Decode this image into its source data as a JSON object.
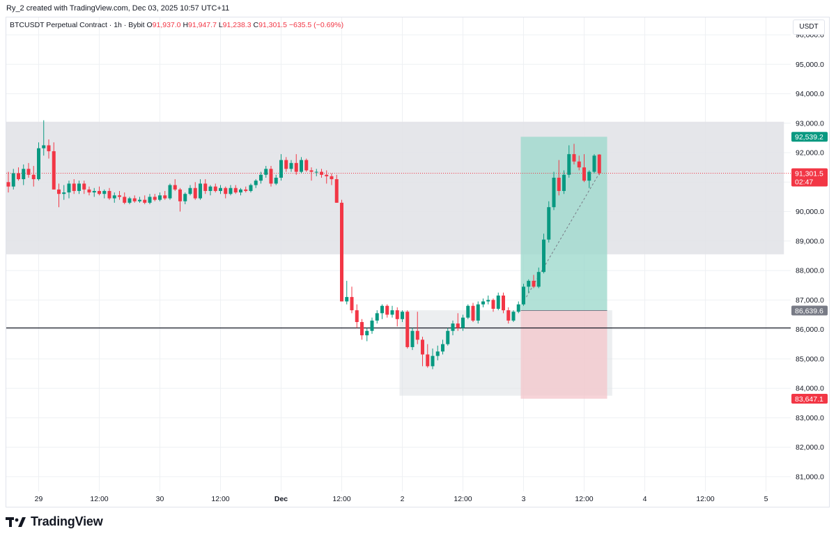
{
  "header": {
    "credit": "Ry_2 created with TradingView.com, Dec 03, 2025 10:57 UTC+11"
  },
  "legend": {
    "symbol": "BTCUSDT Perpetual Contract · 1h · Bybit",
    "o_label": "O",
    "o_value": "91,937.0",
    "h_label": "H",
    "h_value": "91,947.7",
    "l_label": "L",
    "l_value": "91,238.3",
    "c_label": "C",
    "c_value": "91,301.5",
    "change": "−635.5 (−0.69%)"
  },
  "currency": "USDT",
  "footer": {
    "brand": "TradingView"
  },
  "colors": {
    "up": "#089981",
    "down": "#f23645",
    "zone": "#e0e2e6",
    "profit": "#9fd9cd",
    "loss": "#f4c5cb",
    "grid": "#eef0f3"
  },
  "chart_data": {
    "type": "candlestick",
    "timeframe": "1h",
    "ylim": [
      80500,
      96000
    ],
    "y_ticks": [
      81000,
      82000,
      83000,
      84000,
      85000,
      86000,
      87000,
      88000,
      89000,
      90000,
      91000,
      92000,
      93000,
      94000,
      95000,
      96000
    ],
    "y_tick_labels": [
      "81,000.0",
      "82,000.0",
      "83,000.0",
      "84,000.0",
      "85,000.0",
      "86,000.0",
      "87,000.0",
      "88,000.0",
      "89,000.0",
      "90,000.0",
      "91,000.0",
      "92,000.0",
      "93,000.0",
      "94,000.0",
      "95,000.0",
      "96,000.0"
    ],
    "x_ticks": [
      {
        "label": "29",
        "bar": 6,
        "bold": false
      },
      {
        "label": "12:00",
        "bar": 18,
        "bold": false
      },
      {
        "label": "30",
        "bar": 30,
        "bold": false
      },
      {
        "label": "12:00",
        "bar": 42,
        "bold": false
      },
      {
        "label": "Dec",
        "bar": 54,
        "bold": true
      },
      {
        "label": "12:00",
        "bar": 66,
        "bold": false
      },
      {
        "label": "2",
        "bar": 78,
        "bold": false
      },
      {
        "label": "12:00",
        "bar": 90,
        "bold": false
      },
      {
        "label": "3",
        "bar": 102,
        "bold": false
      },
      {
        "label": "12:00",
        "bar": 114,
        "bold": false
      },
      {
        "label": "4",
        "bar": 126,
        "bold": false
      },
      {
        "label": "12:00",
        "bar": 138,
        "bold": false
      },
      {
        "label": "5",
        "bar": 150,
        "bold": false
      }
    ],
    "candles": [
      [
        91000,
        91350,
        90650,
        90850
      ],
      [
        90850,
        91450,
        90750,
        91300
      ],
      [
        91300,
        91500,
        91050,
        91100
      ],
      [
        91100,
        91600,
        90900,
        91450
      ],
      [
        91450,
        91650,
        91150,
        91250
      ],
      [
        91250,
        91550,
        90850,
        91100
      ],
      [
        91100,
        92350,
        91050,
        92150
      ],
      [
        92150,
        93100,
        91900,
        92250
      ],
      [
        92250,
        92450,
        91800,
        92050
      ],
      [
        92050,
        92350,
        90750,
        90750
      ],
      [
        90750,
        90950,
        90150,
        90600
      ],
      [
        90600,
        90900,
        90400,
        90650
      ],
      [
        90650,
        91050,
        90450,
        90950
      ],
      [
        90950,
        91100,
        90600,
        90700
      ],
      [
        90700,
        91050,
        90600,
        90950
      ],
      [
        90950,
        91050,
        90600,
        90750
      ],
      [
        90750,
        90850,
        90550,
        90650
      ],
      [
        90650,
        90800,
        90500,
        90700
      ],
      [
        90700,
        90850,
        90550,
        90600
      ],
      [
        90600,
        90750,
        90450,
        90700
      ],
      [
        90700,
        90800,
        90400,
        90450
      ],
      [
        90450,
        90650,
        90300,
        90550
      ],
      [
        90550,
        90700,
        90400,
        90500
      ],
      [
        90500,
        90650,
        90250,
        90300
      ],
      [
        90300,
        90500,
        90250,
        90450
      ],
      [
        90450,
        90550,
        90300,
        90350
      ],
      [
        90350,
        90500,
        90300,
        90400
      ],
      [
        90400,
        90550,
        90250,
        90300
      ],
      [
        90300,
        90600,
        90250,
        90500
      ],
      [
        90500,
        90600,
        90350,
        90400
      ],
      [
        90400,
        90650,
        90350,
        90550
      ],
      [
        90550,
        90700,
        90400,
        90450
      ],
      [
        90450,
        90950,
        90400,
        90900
      ],
      [
        90900,
        91100,
        90700,
        90750
      ],
      [
        90750,
        90800,
        90000,
        90350
      ],
      [
        90350,
        90650,
        90250,
        90600
      ],
      [
        90600,
        90900,
        90550,
        90800
      ],
      [
        90800,
        91000,
        90400,
        90450
      ],
      [
        90450,
        91100,
        90400,
        90950
      ],
      [
        90950,
        91100,
        90600,
        90700
      ],
      [
        90700,
        90900,
        90550,
        90850
      ],
      [
        90850,
        90950,
        90650,
        90700
      ],
      [
        90700,
        90900,
        90600,
        90800
      ],
      [
        90800,
        90850,
        90450,
        90600
      ],
      [
        90600,
        90900,
        90550,
        90800
      ],
      [
        90800,
        90900,
        90600,
        90650
      ],
      [
        90650,
        90800,
        90550,
        90750
      ],
      [
        90750,
        90850,
        90650,
        90700
      ],
      [
        90700,
        90950,
        90650,
        90900
      ],
      [
        90900,
        91100,
        90800,
        91050
      ],
      [
        91050,
        91350,
        90950,
        91250
      ],
      [
        91250,
        91550,
        91150,
        91450
      ],
      [
        91450,
        91550,
        90850,
        90950
      ],
      [
        90950,
        91250,
        90900,
        91150
      ],
      [
        91150,
        91950,
        91050,
        91750
      ],
      [
        91750,
        91850,
        91350,
        91450
      ],
      [
        91450,
        91750,
        91350,
        91650
      ],
      [
        91650,
        91950,
        91250,
        91350
      ],
      [
        91350,
        91850,
        91300,
        91750
      ],
      [
        91750,
        91800,
        91350,
        91400
      ],
      [
        91400,
        91500,
        91050,
        91350
      ],
      [
        91350,
        91450,
        91200,
        91350
      ],
      [
        91350,
        91450,
        91150,
        91250
      ],
      [
        91250,
        91400,
        90950,
        91200
      ],
      [
        91200,
        91300,
        90900,
        91100
      ],
      [
        91100,
        91250,
        90300,
        90300
      ],
      [
        90300,
        90400,
        86950,
        86950
      ],
      [
        86950,
        87650,
        86850,
        87100
      ],
      [
        87100,
        87450,
        86550,
        86650
      ],
      [
        86650,
        86850,
        86050,
        86250
      ],
      [
        86250,
        86350,
        85650,
        85800
      ],
      [
        85800,
        86050,
        85600,
        85950
      ],
      [
        85950,
        86400,
        85850,
        86300
      ],
      [
        86300,
        86650,
        86200,
        86550
      ],
      [
        86550,
        86850,
        86350,
        86800
      ],
      [
        86800,
        86850,
        86400,
        86500
      ],
      [
        86500,
        86800,
        86400,
        86650
      ],
      [
        86650,
        86750,
        86100,
        86350
      ],
      [
        86350,
        86650,
        86250,
        86600
      ],
      [
        86600,
        86650,
        85350,
        85400
      ],
      [
        85400,
        86050,
        85300,
        85950
      ],
      [
        85950,
        86600,
        85500,
        85650
      ],
      [
        85650,
        85750,
        84750,
        85150
      ],
      [
        85150,
        85500,
        84700,
        84750
      ],
      [
        84750,
        85350,
        84650,
        85100
      ],
      [
        85100,
        85450,
        84950,
        85250
      ],
      [
        85250,
        85650,
        85150,
        85500
      ],
      [
        85500,
        86050,
        85450,
        85950
      ],
      [
        85950,
        86300,
        85800,
        86200
      ],
      [
        86200,
        86550,
        85950,
        86050
      ],
      [
        86050,
        86500,
        85950,
        86400
      ],
      [
        86400,
        86850,
        86350,
        86800
      ],
      [
        86800,
        86900,
        86250,
        86300
      ],
      [
        86300,
        86950,
        86200,
        86850
      ],
      [
        86850,
        87050,
        86750,
        86950
      ],
      [
        86950,
        87150,
        86850,
        87000
      ],
      [
        87000,
        87050,
        86600,
        86700
      ],
      [
        86700,
        87250,
        86650,
        87150
      ],
      [
        87150,
        87250,
        86550,
        86650
      ],
      [
        86650,
        86750,
        86200,
        86300
      ],
      [
        86300,
        86650,
        86250,
        86600
      ],
      [
        86600,
        86950,
        86550,
        86850
      ],
      [
        86850,
        87550,
        86800,
        87450
      ],
      [
        87450,
        87700,
        87250,
        87650
      ],
      [
        87650,
        87850,
        87400,
        87450
      ],
      [
        87450,
        88100,
        87400,
        87950
      ],
      [
        87950,
        89250,
        87900,
        89050
      ],
      [
        89050,
        90350,
        88950,
        90150
      ],
      [
        90150,
        91350,
        90050,
        91150
      ],
      [
        91150,
        91750,
        90550,
        90700
      ],
      [
        90700,
        91400,
        90600,
        91250
      ],
      [
        91250,
        92250,
        91150,
        91950
      ],
      [
        91950,
        92300,
        91600,
        91700
      ],
      [
        91700,
        91900,
        91400,
        91500
      ],
      [
        91500,
        91950,
        91000,
        91050
      ],
      [
        91050,
        91400,
        90800,
        91350
      ],
      [
        91350,
        91950,
        91300,
        91900
      ],
      [
        91937,
        91947.7,
        91238.3,
        91301.5
      ]
    ],
    "zones": [
      {
        "from_bar": 0,
        "to_bar": 153,
        "high": 93050,
        "low": 88550
      },
      {
        "from_bar": 78,
        "to_bar": 119,
        "high": 86650,
        "low": 83750
      }
    ],
    "position": {
      "from_bar": 102,
      "to_bar": 118,
      "target": 92539.2,
      "entry": 86639.6,
      "stop": 83647.1
    },
    "horizontal_line": 86050,
    "last_price": 91301.5,
    "countdown": "02:47",
    "price_labels": [
      {
        "text": "92,539.2",
        "value": 92539.2,
        "color": "#089981"
      },
      {
        "text": "91,301.5",
        "value": 91301.5,
        "color": "#f23645"
      },
      {
        "text": "86,639.6",
        "value": 86639.6,
        "color": "#787b86"
      },
      {
        "text": "83,647.1",
        "value": 83647.1,
        "color": "#f23645"
      }
    ]
  }
}
